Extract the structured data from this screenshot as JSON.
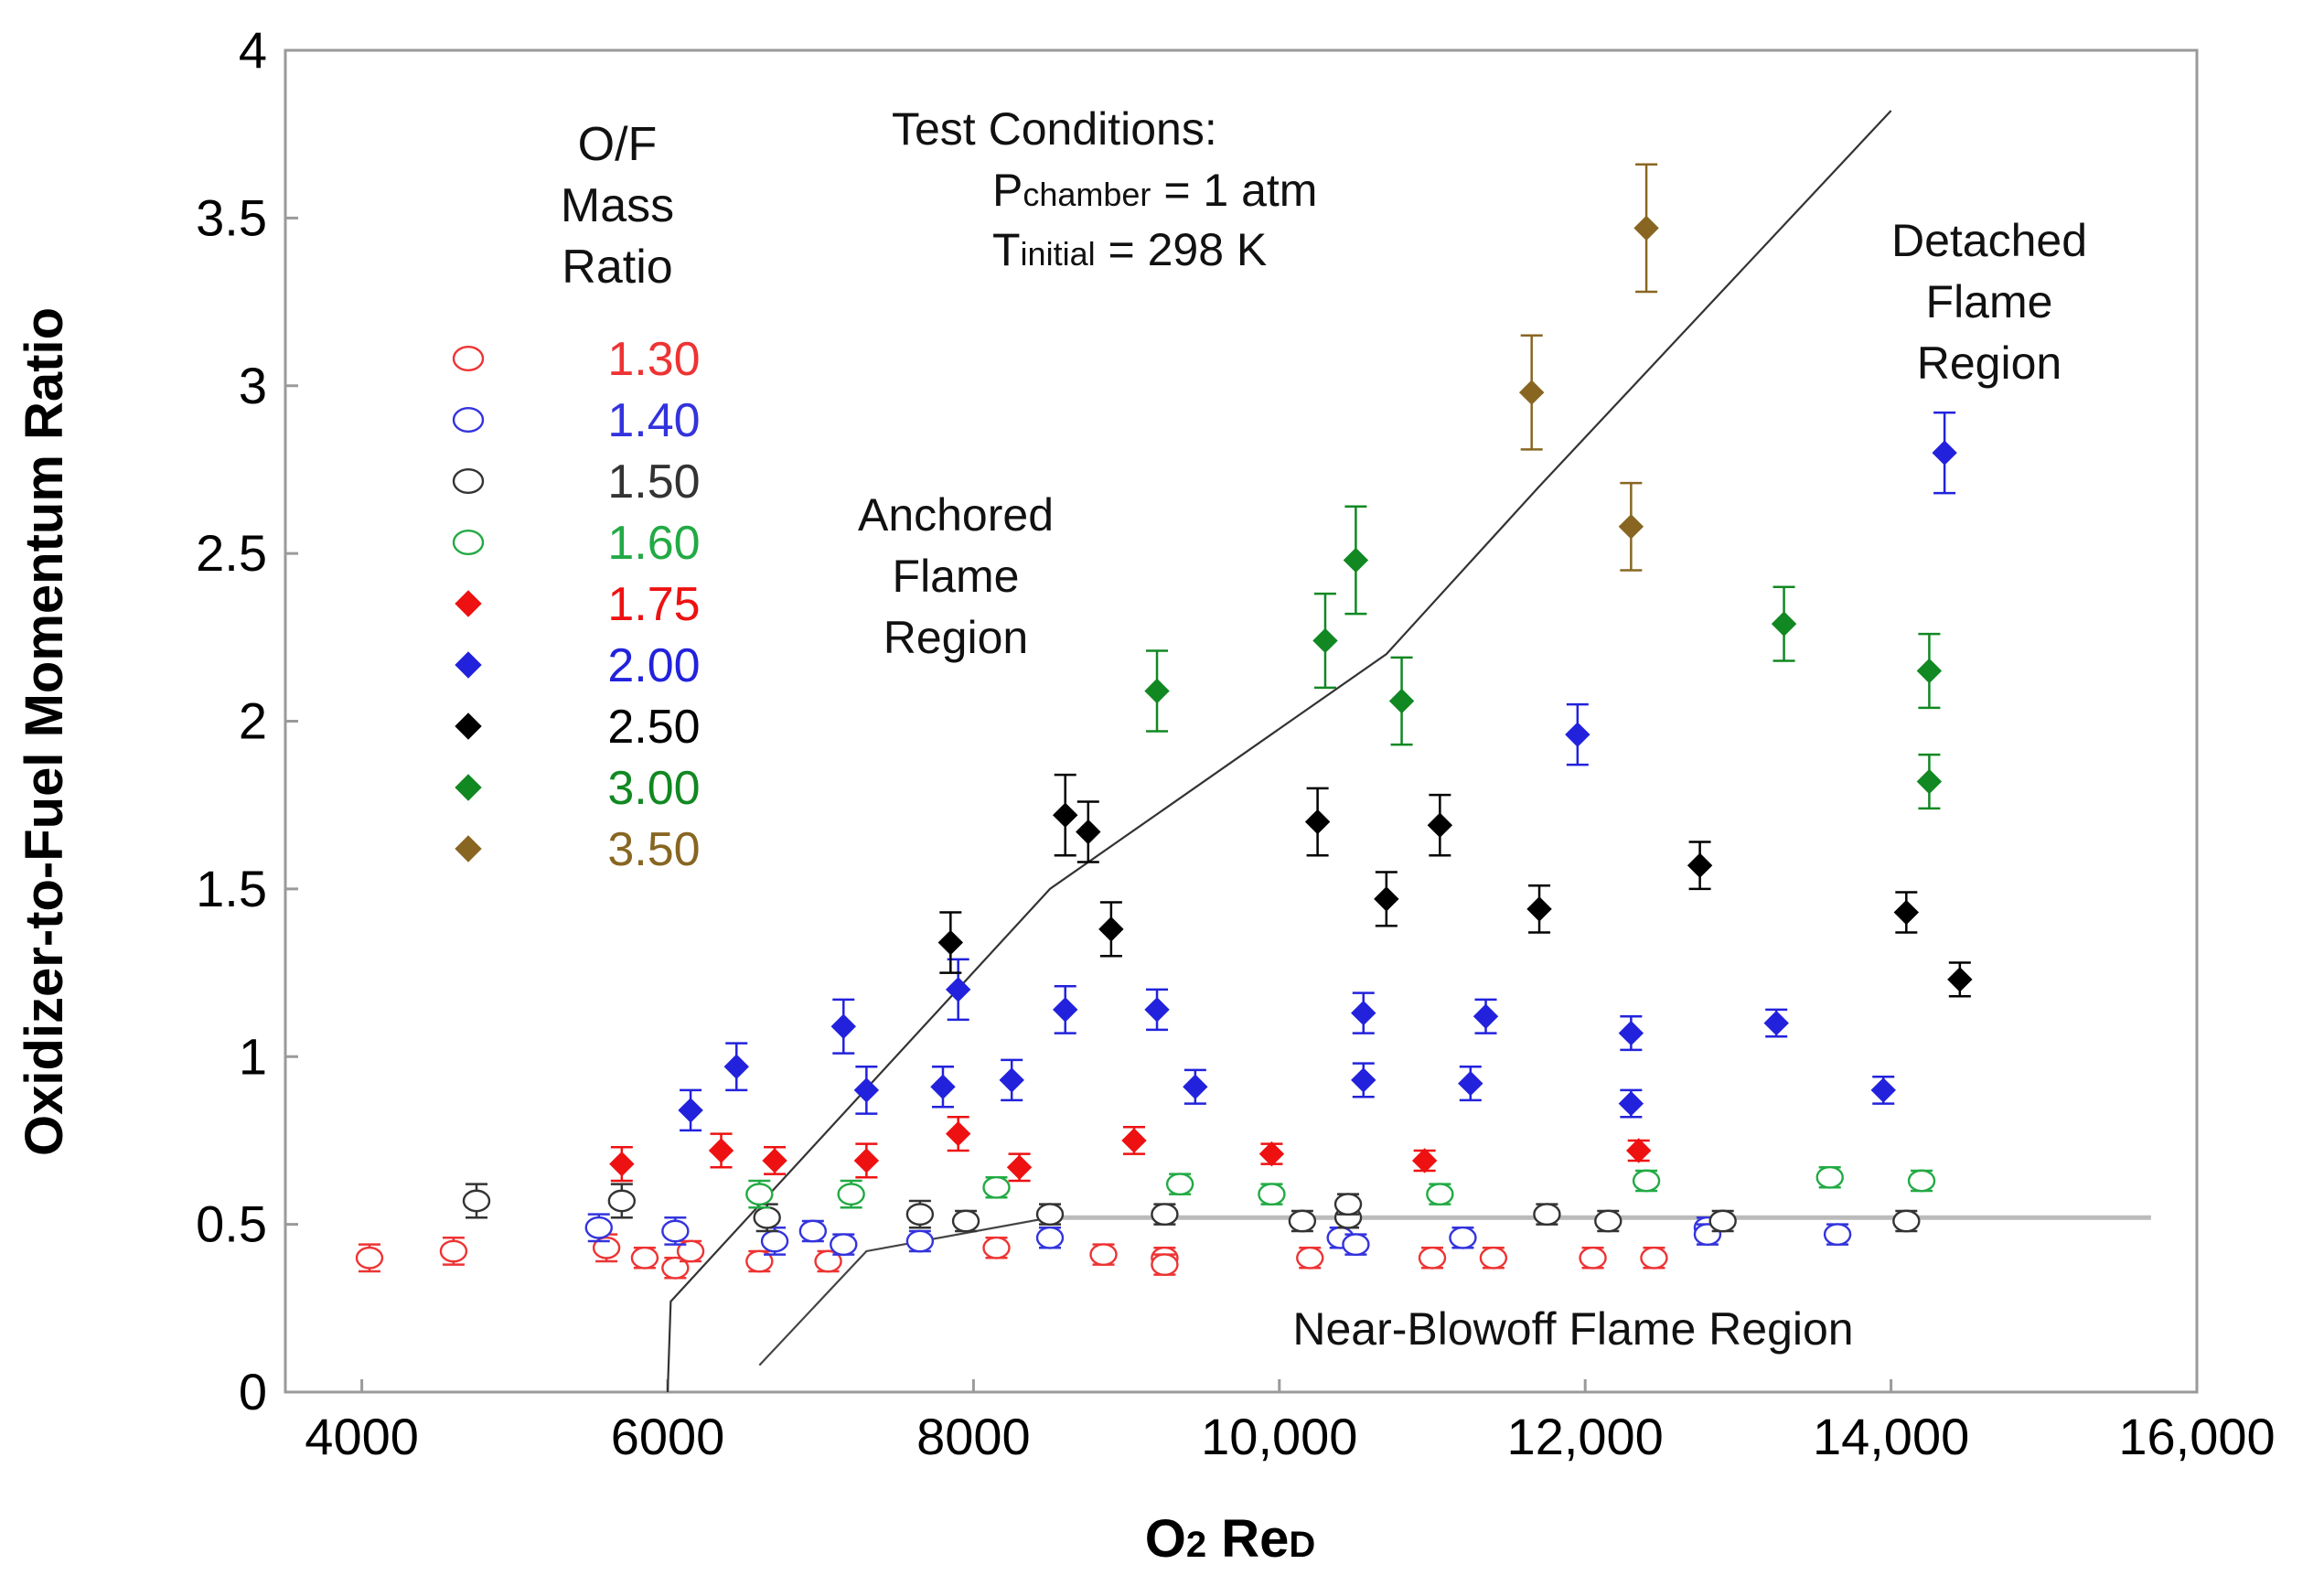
{
  "chart_data": {
    "type": "scatter",
    "xlabel": "O2 ReD",
    "ylabel": "Oxidizer-to-Fuel Momentum Ratio",
    "xlim": [
      3500,
      16000
    ],
    "ylim": [
      0,
      4
    ],
    "x_ticks": [
      "4000",
      "6000",
      "8000",
      "10,000",
      "12,000",
      "14,000",
      "16,000"
    ],
    "y_ticks": [
      "0",
      "0.5",
      "1",
      "1.5",
      "2",
      "2.5",
      "3",
      "3.5",
      "4"
    ],
    "grid": false,
    "legend": {
      "position": "top-left",
      "title_lines": [
        "O/F",
        "Mass",
        "Ratio"
      ]
    },
    "annotations": {
      "test_conditions": "Test Conditions:",
      "pressure_sym": "P",
      "pressure_sub": "chamber",
      "pressure_val": " = 1 atm",
      "temp_sym": "T",
      "temp_sub": "initial",
      "temp_val": " = 298 K",
      "anchored": [
        "Anchored",
        "Flame",
        "Region"
      ],
      "detached": [
        "Detached",
        "Flame",
        "Region"
      ],
      "blowoff": "Near-Blowoff Flame Region"
    },
    "boundaries": {
      "upper": [
        [
          6000,
          0
        ],
        [
          6020,
          0.27
        ],
        [
          8500,
          1.5
        ],
        [
          10700,
          2.2
        ],
        [
          11700,
          2.7
        ],
        [
          14000,
          3.82
        ]
      ],
      "lower": [
        [
          6600,
          0.08
        ],
        [
          7300,
          0.42
        ],
        [
          8500,
          0.52
        ],
        [
          15700,
          0.52
        ]
      ]
    },
    "series": [
      {
        "name": "1.30",
        "color": "#ee3333",
        "marker": "open",
        "points": [
          [
            4050,
            0.4,
            0.04
          ],
          [
            4600,
            0.42,
            0.04
          ],
          [
            5600,
            0.43,
            0.04
          ],
          [
            5850,
            0.4,
            0.03
          ],
          [
            6050,
            0.37,
            0.03
          ],
          [
            6150,
            0.42,
            0.03
          ],
          [
            6600,
            0.39,
            0.03
          ],
          [
            7050,
            0.39,
            0.03
          ],
          [
            8150,
            0.43,
            0.03
          ],
          [
            8850,
            0.41,
            0.03
          ],
          [
            9250,
            0.4,
            0.03
          ],
          [
            9250,
            0.38,
            0.03
          ],
          [
            10200,
            0.4,
            0.03
          ],
          [
            11000,
            0.4,
            0.03
          ],
          [
            11400,
            0.4,
            0.03
          ],
          [
            12050,
            0.4,
            0.03
          ],
          [
            12450,
            0.4,
            0.03
          ]
        ]
      },
      {
        "name": "1.40",
        "color": "#3333dd",
        "marker": "open",
        "points": [
          [
            5550,
            0.49,
            0.04
          ],
          [
            6050,
            0.48,
            0.04
          ],
          [
            6700,
            0.45,
            0.04
          ],
          [
            6950,
            0.48,
            0.03
          ],
          [
            7150,
            0.44,
            0.03
          ],
          [
            7650,
            0.45,
            0.03
          ],
          [
            8500,
            0.46,
            0.03
          ],
          [
            10400,
            0.46,
            0.03
          ],
          [
            10500,
            0.44,
            0.03
          ],
          [
            11200,
            0.46,
            0.03
          ],
          [
            12800,
            0.49,
            0.03
          ],
          [
            12800,
            0.47,
            0.03
          ],
          [
            13650,
            0.47,
            0.03
          ]
        ]
      },
      {
        "name": "1.50",
        "color": "#333333",
        "marker": "open",
        "points": [
          [
            4750,
            0.57,
            0.05
          ],
          [
            5700,
            0.57,
            0.05
          ],
          [
            6650,
            0.52,
            0.04
          ],
          [
            7650,
            0.53,
            0.04
          ],
          [
            7950,
            0.51,
            0.03
          ],
          [
            8500,
            0.53,
            0.03
          ],
          [
            9250,
            0.53,
            0.03
          ],
          [
            10150,
            0.51,
            0.03
          ],
          [
            10450,
            0.52,
            0.03
          ],
          [
            10450,
            0.56,
            0.03
          ],
          [
            11750,
            0.53,
            0.03
          ],
          [
            12150,
            0.51,
            0.03
          ],
          [
            12900,
            0.51,
            0.03
          ],
          [
            14100,
            0.51,
            0.03
          ]
        ]
      },
      {
        "name": "1.60",
        "color": "#22aa44",
        "marker": "open",
        "points": [
          [
            6600,
            0.59,
            0.04
          ],
          [
            7200,
            0.59,
            0.04
          ],
          [
            8150,
            0.61,
            0.03
          ],
          [
            9350,
            0.62,
            0.03
          ],
          [
            9950,
            0.59,
            0.03
          ],
          [
            11050,
            0.59,
            0.03
          ],
          [
            12400,
            0.63,
            0.03
          ],
          [
            13600,
            0.64,
            0.03
          ],
          [
            14200,
            0.63,
            0.03
          ]
        ]
      },
      {
        "name": "1.75",
        "color": "#ee1111",
        "marker": "filled",
        "points": [
          [
            5700,
            0.68,
            0.05
          ],
          [
            6350,
            0.72,
            0.05
          ],
          [
            6700,
            0.69,
            0.04
          ],
          [
            7300,
            0.69,
            0.05
          ],
          [
            7900,
            0.77,
            0.05
          ],
          [
            8300,
            0.67,
            0.04
          ],
          [
            9050,
            0.75,
            0.04
          ],
          [
            9950,
            0.71,
            0.03
          ],
          [
            10950,
            0.69,
            0.03
          ],
          [
            12350,
            0.72,
            0.03
          ]
        ]
      },
      {
        "name": "2.00",
        "color": "#2222dd",
        "marker": "filled",
        "points": [
          [
            6150,
            0.84,
            0.06
          ],
          [
            6450,
            0.97,
            0.07
          ],
          [
            7150,
            1.09,
            0.08
          ],
          [
            7300,
            0.9,
            0.07
          ],
          [
            7800,
            0.91,
            0.06
          ],
          [
            7900,
            1.2,
            0.09
          ],
          [
            8250,
            0.93,
            0.06
          ],
          [
            8600,
            1.14,
            0.07
          ],
          [
            9200,
            1.14,
            0.06
          ],
          [
            9450,
            0.91,
            0.05
          ],
          [
            10550,
            1.13,
            0.06
          ],
          [
            10550,
            0.93,
            0.05
          ],
          [
            11250,
            0.92,
            0.05
          ],
          [
            11350,
            1.12,
            0.05
          ],
          [
            11950,
            1.96,
            0.09
          ],
          [
            12300,
            1.07,
            0.05
          ],
          [
            12300,
            0.86,
            0.04
          ],
          [
            13250,
            1.1,
            0.04
          ],
          [
            13950,
            0.9,
            0.04
          ],
          [
            14350,
            2.8,
            0.12
          ]
        ]
      },
      {
        "name": "2.50",
        "color": "#000000",
        "marker": "filled",
        "points": [
          [
            7850,
            1.34,
            0.09
          ],
          [
            8600,
            1.72,
            0.12
          ],
          [
            8750,
            1.67,
            0.09
          ],
          [
            8900,
            1.38,
            0.08
          ],
          [
            10250,
            1.7,
            0.1
          ],
          [
            10700,
            1.47,
            0.08
          ],
          [
            11050,
            1.69,
            0.09
          ],
          [
            11700,
            1.44,
            0.07
          ],
          [
            12750,
            1.57,
            0.07
          ],
          [
            14100,
            1.43,
            0.06
          ],
          [
            14450,
            1.23,
            0.05
          ]
        ]
      },
      {
        "name": "3.00",
        "color": "#118822",
        "marker": "filled",
        "points": [
          [
            9200,
            2.09,
            0.12
          ],
          [
            10300,
            2.24,
            0.14
          ],
          [
            10500,
            2.48,
            0.16
          ],
          [
            10800,
            2.06,
            0.13
          ],
          [
            13300,
            2.29,
            0.11
          ],
          [
            14250,
            2.15,
            0.11
          ],
          [
            14250,
            1.82,
            0.08
          ]
        ]
      },
      {
        "name": "3.50",
        "color": "#886622",
        "marker": "filled",
        "points": [
          [
            11650,
            2.98,
            0.17
          ],
          [
            12400,
            3.47,
            0.19
          ],
          [
            12300,
            2.58,
            0.13
          ]
        ]
      }
    ]
  }
}
